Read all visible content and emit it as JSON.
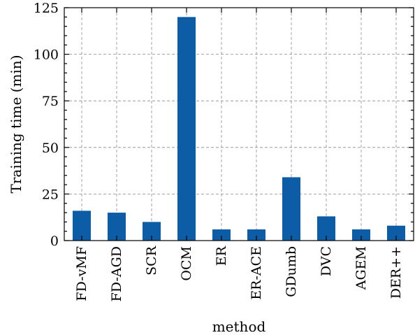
{
  "chart_data": {
    "type": "bar",
    "xlabel": "method",
    "ylabel": "Training time (min)",
    "categories": [
      "FD-vMF",
      "FD-AGD",
      "SCR",
      "OCM",
      "ER",
      "ER-ACE",
      "GDumb",
      "DVC",
      "AGEM",
      "DER++"
    ],
    "values": [
      16,
      15,
      10,
      120,
      6,
      6,
      34,
      13,
      6,
      8
    ],
    "ylim": [
      0,
      125
    ],
    "yticks": [
      0,
      25,
      50,
      75,
      100,
      125
    ],
    "grid": true,
    "bar_color": "#0c5da5"
  }
}
